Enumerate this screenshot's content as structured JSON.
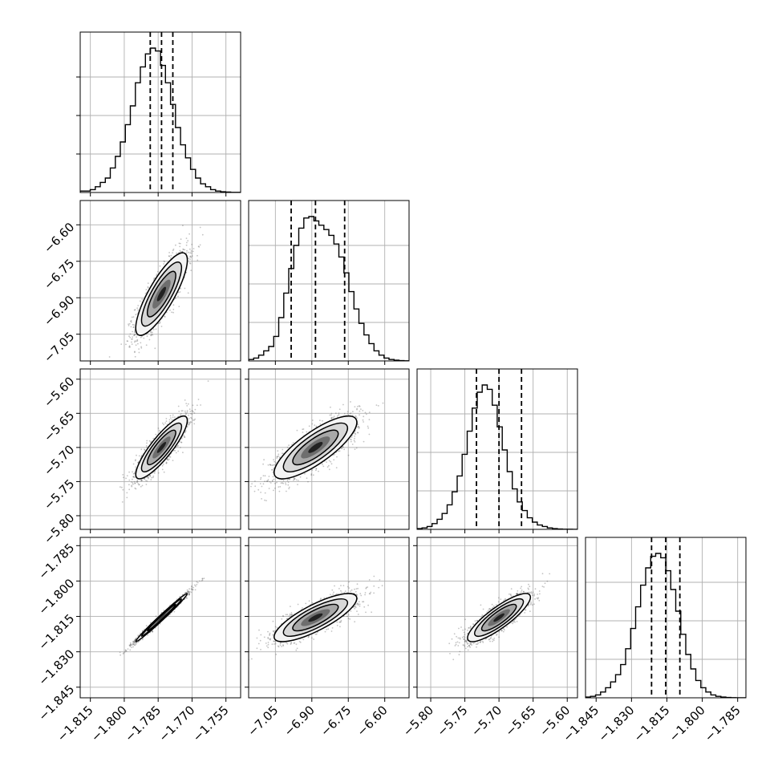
{
  "chart_data": {
    "type": "corner",
    "variables": 4,
    "ranges": [
      [
        -1.8195,
        -1.7485
      ],
      [
        -7.16,
        -6.5
      ],
      [
        -5.82,
        -5.585
      ],
      [
        -1.8495,
        -1.7815
      ]
    ],
    "ticks": [
      [
        -1.815,
        -1.8,
        -1.785,
        -1.77,
        -1.755
      ],
      [
        -7.05,
        -6.9,
        -6.75,
        -6.6
      ],
      [
        -5.8,
        -5.75,
        -5.7,
        -5.65,
        -5.6
      ],
      [
        -1.845,
        -1.83,
        -1.815,
        -1.8,
        -1.785
      ]
    ],
    "tick_labels": [
      [
        "−1.815",
        "−1.800",
        "−1.785",
        "−1.770",
        "−1.755"
      ],
      [
        "−7.05",
        "−6.90",
        "−6.75",
        "−6.60"
      ],
      [
        "−5.80",
        "−5.75",
        "−5.70",
        "−5.65",
        "−5.60"
      ],
      [
        "−1.845",
        "−1.830",
        "−1.815",
        "−1.800",
        "−1.785"
      ]
    ],
    "quantiles": [
      [
        -1.7885,
        -1.7835,
        -1.7785
      ],
      [
        -6.985,
        -6.885,
        -6.765
      ],
      [
        -5.733,
        -5.7,
        -5.667
      ],
      [
        -1.8215,
        -1.8155,
        -1.8095
      ]
    ],
    "histograms": [
      {
        "bin_start": -1.8195,
        "bin_width": 0.00222,
        "counts": [
          0.01,
          0.01,
          0.02,
          0.04,
          0.07,
          0.1,
          0.17,
          0.25,
          0.35,
          0.47,
          0.6,
          0.76,
          0.87,
          0.96,
          1.0,
          0.98,
          0.88,
          0.76,
          0.61,
          0.45,
          0.33,
          0.24,
          0.16,
          0.1,
          0.06,
          0.04,
          0.02,
          0.01,
          0.005,
          0.003,
          0.001,
          0.001
        ]
      },
      {
        "bin_start": -7.16,
        "bin_width": 0.02063,
        "counts": [
          0.01,
          0.02,
          0.04,
          0.07,
          0.1,
          0.17,
          0.3,
          0.47,
          0.64,
          0.8,
          0.92,
          0.99,
          1.0,
          0.97,
          0.94,
          0.91,
          0.87,
          0.81,
          0.72,
          0.61,
          0.48,
          0.36,
          0.26,
          0.18,
          0.12,
          0.07,
          0.04,
          0.02,
          0.01,
          0.005,
          0.002,
          0.001
        ]
      },
      {
        "bin_start": -5.82,
        "bin_width": 0.00734,
        "counts": [
          0.005,
          0.01,
          0.02,
          0.04,
          0.07,
          0.11,
          0.17,
          0.26,
          0.37,
          0.52,
          0.68,
          0.84,
          0.95,
          1.0,
          0.97,
          0.86,
          0.71,
          0.55,
          0.4,
          0.28,
          0.19,
          0.13,
          0.08,
          0.05,
          0.03,
          0.02,
          0.01,
          0.005,
          0.002,
          0.001,
          0.001,
          0.0
        ]
      },
      {
        "bin_start": -1.8495,
        "bin_width": 0.002125,
        "counts": [
          0.005,
          0.01,
          0.02,
          0.04,
          0.07,
          0.11,
          0.16,
          0.23,
          0.34,
          0.48,
          0.63,
          0.78,
          0.9,
          0.98,
          1.0,
          0.97,
          0.88,
          0.75,
          0.6,
          0.44,
          0.3,
          0.2,
          0.12,
          0.07,
          0.04,
          0.02,
          0.01,
          0.005,
          0.002,
          0.001,
          0.0,
          0.0
        ]
      }
    ],
    "correlations": [
      [
        1,
        0.82,
        0.86,
        0.99
      ],
      [
        0.82,
        1,
        0.8,
        0.8
      ],
      [
        0.86,
        0.8,
        1,
        0.85
      ],
      [
        0.99,
        0.8,
        0.85,
        1
      ]
    ],
    "std": [
      0.0057,
      0.085,
      0.023,
      0.0051
    ],
    "grid": true,
    "colors": {
      "ink": "#000000",
      "grid": "#b0b0b0",
      "points": "#555555",
      "density_max": "#000000"
    }
  }
}
